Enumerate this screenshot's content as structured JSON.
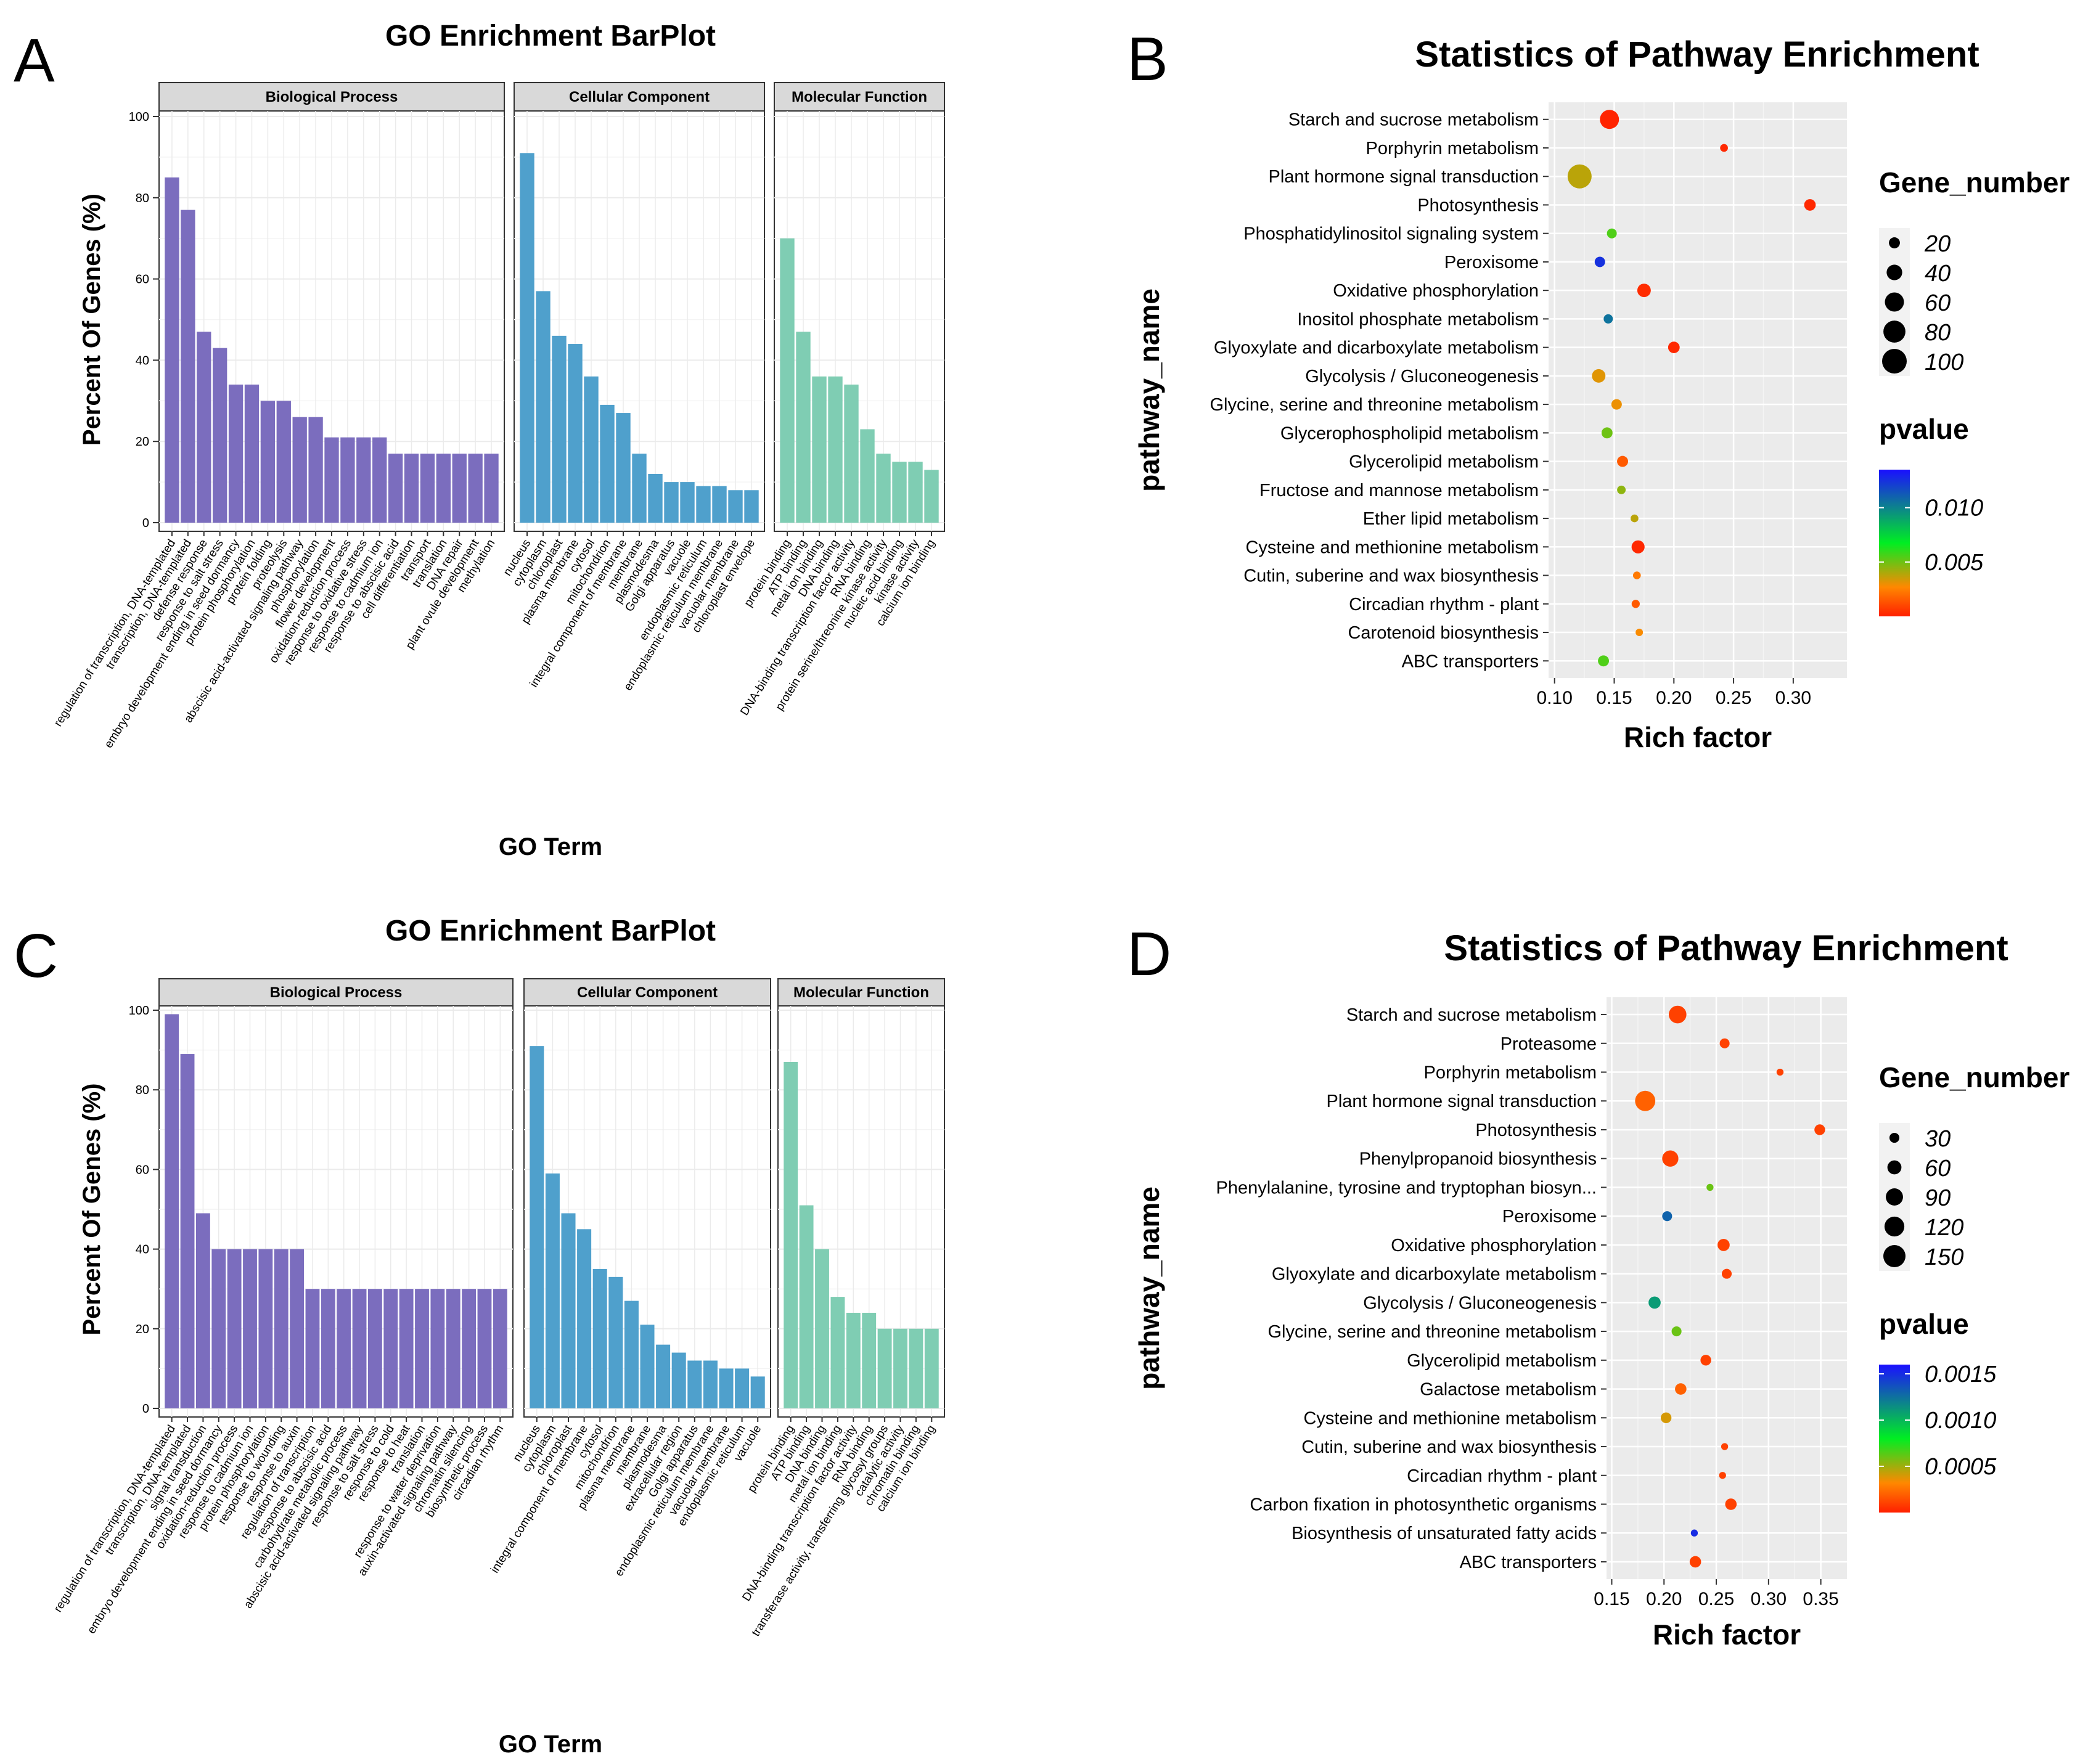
{
  "chart_data": [
    {
      "type": "bar",
      "panel": "A",
      "title": "GO Enrichment BarPlot",
      "xlabel": "GO Term",
      "ylabel": "Percent Of Genes (%)",
      "ylim": [
        0,
        100
      ],
      "yticks": [
        0,
        20,
        40,
        60,
        80,
        100
      ],
      "facets": [
        {
          "name": "Biological Process",
          "color": "#7B6DBE",
          "categories": [
            "regulation of transcription, DNA-templated",
            "transcription, DNA-templated",
            "defense response",
            "response to salt stress",
            "embryo development ending in seed dormancy",
            "protein phosphorylation",
            "protein folding",
            "proteolysis",
            "abscisic acid-activated signaling pathway",
            "phosphorylation",
            "flower development",
            "oxidation-reduction process",
            "response to oxidative stress",
            "response to cadmium ion",
            "response to abscisic acid",
            "cell differentiation",
            "transport",
            "translation",
            "DNA repair",
            "plant ovule development",
            "methylation"
          ],
          "values": [
            85,
            77,
            47,
            43,
            34,
            34,
            30,
            30,
            26,
            26,
            21,
            21,
            21,
            21,
            17,
            17,
            17,
            17,
            17,
            17,
            17
          ]
        },
        {
          "name": "Cellular Component",
          "color": "#4FA0CC",
          "categories": [
            "nucleus",
            "cytoplasm",
            "chloroplast",
            "plasma membrane",
            "cytosol",
            "mitochondrion",
            "integral component of membrane",
            "membrane",
            "plasmodesma",
            "Golgi apparatus",
            "vacuole",
            "endoplasmic reticulum",
            "endoplasmic reticulum membrane",
            "vacuolar membrane",
            "chloroplast envelope"
          ],
          "values": [
            91,
            57,
            46,
            44,
            36,
            29,
            27,
            17,
            12,
            10,
            10,
            9,
            9,
            8,
            8
          ]
        },
        {
          "name": "Molecular Function",
          "color": "#7FCDB3",
          "categories": [
            "protein binding",
            "ATP binding",
            "metal ion binding",
            "DNA binding",
            "DNA-binding transcription factor activity",
            "RNA binding",
            "protein serine/threonine kinase activity",
            "nucleic acid binding",
            "kinase activity",
            "calcium ion binding"
          ],
          "values": [
            70,
            47,
            36,
            36,
            34,
            23,
            17,
            15,
            15,
            13
          ]
        }
      ]
    },
    {
      "type": "scatter",
      "panel": "B",
      "title": "Statistics of Pathway Enrichment",
      "xlabel": "Rich factor",
      "ylabel": "pathway_name",
      "xlim": [
        0.095,
        0.345
      ],
      "xticks": [
        0.1,
        0.15,
        0.2,
        0.25,
        0.3
      ],
      "xtick_labels": [
        "0.10",
        "0.15",
        "0.20",
        "0.25",
        "0.30"
      ],
      "pathways": [
        "Starch and sucrose metabolism",
        "Porphyrin metabolism",
        "Plant hormone signal transduction",
        "Photosynthesis",
        "Phosphatidylinositol signaling system",
        "Peroxisome",
        "Oxidative phosphorylation",
        "Inositol phosphate metabolism",
        "Glyoxylate and dicarboxylate metabolism",
        "Glycolysis / Gluconeogenesis",
        "Glycine, serine and threonine metabolism",
        "Glycerophospholipid metabolism",
        "Glycerolipid metabolism",
        "Fructose and mannose metabolism",
        "Ether lipid metabolism",
        "Cysteine and methionine metabolism",
        "Cutin, suberine and wax biosynthesis",
        "Circadian rhythm - plant",
        "Carotenoid biosynthesis",
        "ABC transporters"
      ],
      "rich_factor": [
        0.146,
        0.242,
        0.121,
        0.314,
        0.148,
        0.138,
        0.175,
        0.145,
        0.2,
        0.137,
        0.152,
        0.144,
        0.157,
        0.156,
        0.167,
        0.17,
        0.169,
        0.168,
        0.171,
        0.141
      ],
      "gene_number": [
        60,
        10,
        95,
        22,
        16,
        18,
        30,
        14,
        22,
        30,
        18,
        20,
        20,
        12,
        10,
        28,
        10,
        11,
        9,
        20
      ],
      "pvalue": [
        0.0001,
        0.0002,
        0.0038,
        0.0002,
        0.0055,
        0.0125,
        0.0003,
        0.0105,
        0.0002,
        0.0032,
        0.003,
        0.005,
        0.0015,
        0.0045,
        0.0038,
        0.0002,
        0.0023,
        0.0015,
        0.0028,
        0.0055
      ],
      "legend_size": {
        "title": "Gene_number",
        "values": [
          20,
          40,
          60,
          80,
          100
        ],
        "labels": [
          "20",
          "40",
          "60",
          "80",
          "100"
        ]
      },
      "legend_color": {
        "title": "pvalue",
        "range": [
          0,
          0.0135
        ],
        "ticks": [
          0.01,
          0.005
        ],
        "labels": [
          "0.010",
          "0.005"
        ]
      }
    },
    {
      "type": "bar",
      "panel": "C",
      "title": "GO Enrichment BarPlot",
      "xlabel": "GO Term",
      "ylabel": "Percent Of Genes (%)",
      "ylim": [
        0,
        100
      ],
      "yticks": [
        0,
        20,
        40,
        60,
        80,
        100
      ],
      "facets": [
        {
          "name": "Biological Process",
          "color": "#7B6DBE",
          "categories": [
            "regulation of transcription, DNA-templated",
            "transcription, DNA-templated",
            "signal transduction",
            "embryo development ending in seed dormancy",
            "oxidation-reduction process",
            "response to cadmium ion",
            "protein phosphorylation",
            "response to wounding",
            "response to auxin",
            "regulation of transcription",
            "response to abscisic acid",
            "carbohydrate metabolic process",
            "abscisic acid-activated signaling pathway",
            "response to salt stress",
            "response to cold",
            "response to heat",
            "translation",
            "response to water deprivation",
            "auxin-activated signaling pathway",
            "chromatin silencing",
            "biosynthetic process",
            "circadian rhythm"
          ],
          "values": [
            99,
            89,
            49,
            40,
            40,
            40,
            40,
            40,
            40,
            30,
            30,
            30,
            30,
            30,
            30,
            30,
            30,
            30,
            30,
            30,
            30,
            30
          ]
        },
        {
          "name": "Cellular Component",
          "color": "#4FA0CC",
          "categories": [
            "nucleus",
            "cytoplasm",
            "chloroplast",
            "integral component of membrane",
            "cytosol",
            "mitochondrion",
            "plasma membrane",
            "membrane",
            "plasmodesma",
            "extracellular region",
            "Golgi apparatus",
            "endoplasmic reticulum membrane",
            "vacuolar membrane",
            "endoplasmic reticulum",
            "vacuole"
          ],
          "values": [
            91,
            59,
            49,
            45,
            35,
            33,
            27,
            21,
            16,
            14,
            12,
            12,
            10,
            10,
            8
          ]
        },
        {
          "name": "Molecular Function",
          "color": "#7FCDB3",
          "categories": [
            "protein binding",
            "ATP binding",
            "DNA binding",
            "metal ion binding",
            "DNA-binding transcription factor activity",
            "RNA binding",
            "transferase activity, transferring glycosyl groups",
            "catalytic activity",
            "chromatin binding",
            "calcium ion binding"
          ],
          "values": [
            87,
            51,
            40,
            28,
            24,
            24,
            20,
            20,
            20,
            20
          ]
        }
      ]
    },
    {
      "type": "scatter",
      "panel": "D",
      "title": "Statistics of Pathway Enrichment",
      "xlabel": "Rich factor",
      "ylabel": "pathway_name",
      "xlim": [
        0.145,
        0.375
      ],
      "xticks": [
        0.15,
        0.2,
        0.25,
        0.3,
        0.35
      ],
      "xtick_labels": [
        "0.15",
        "0.20",
        "0.25",
        "0.30",
        "0.35"
      ],
      "pathways": [
        "Starch and sucrose metabolism",
        "Proteasome",
        "Porphyrin metabolism",
        "Plant hormone signal transduction",
        "Photosynthesis",
        "Phenylpropanoid biosynthesis",
        "Phenylalanine, tyrosine and tryptophan biosyn...",
        "Peroxisome",
        "Oxidative phosphorylation",
        "Glyoxylate and dicarboxylate metabolism",
        "Glycolysis / Gluconeogenesis",
        "Glycine, serine and threonine metabolism",
        "Glycerolipid metabolism",
        "Galactose metabolism",
        "Cysteine and methionine metabolism",
        "Cutin, suberine and wax biosynthesis",
        "Circadian rhythm - plant",
        "Carbon fixation in photosynthetic organisms",
        "Biosynthesis of unsaturated fatty acids",
        "ABC transporters"
      ],
      "rich_factor": [
        0.213,
        0.258,
        0.311,
        0.182,
        0.349,
        0.206,
        0.244,
        0.203,
        0.257,
        0.26,
        0.191,
        0.212,
        0.24,
        0.216,
        0.202,
        0.258,
        0.256,
        0.264,
        0.229,
        0.23
      ],
      "gene_number": [
        95,
        30,
        15,
        125,
        35,
        80,
        15,
        30,
        45,
        30,
        45,
        30,
        35,
        40,
        35,
        15,
        15,
        40,
        15,
        40
      ],
      "pvalue": [
        0.0001,
        0.0001,
        0.0001,
        0.0002,
        0.0001,
        0.0001,
        0.0006,
        0.0013,
        0.0001,
        0.0001,
        0.0011,
        0.0006,
        0.0001,
        0.0002,
        0.0004,
        0.0001,
        0.0001,
        0.0001,
        0.0015,
        0.0001
      ],
      "legend_size": {
        "title": "Gene_number",
        "values": [
          30,
          60,
          90,
          120,
          150
        ],
        "labels": [
          "30",
          "60",
          "90",
          "120",
          "150"
        ]
      },
      "legend_color": {
        "title": "pvalue",
        "range": [
          0,
          0.0016
        ],
        "ticks": [
          0.0015,
          0.001,
          0.0005
        ],
        "labels": [
          "0.0015",
          "0.0010",
          "0.0005"
        ]
      }
    }
  ]
}
